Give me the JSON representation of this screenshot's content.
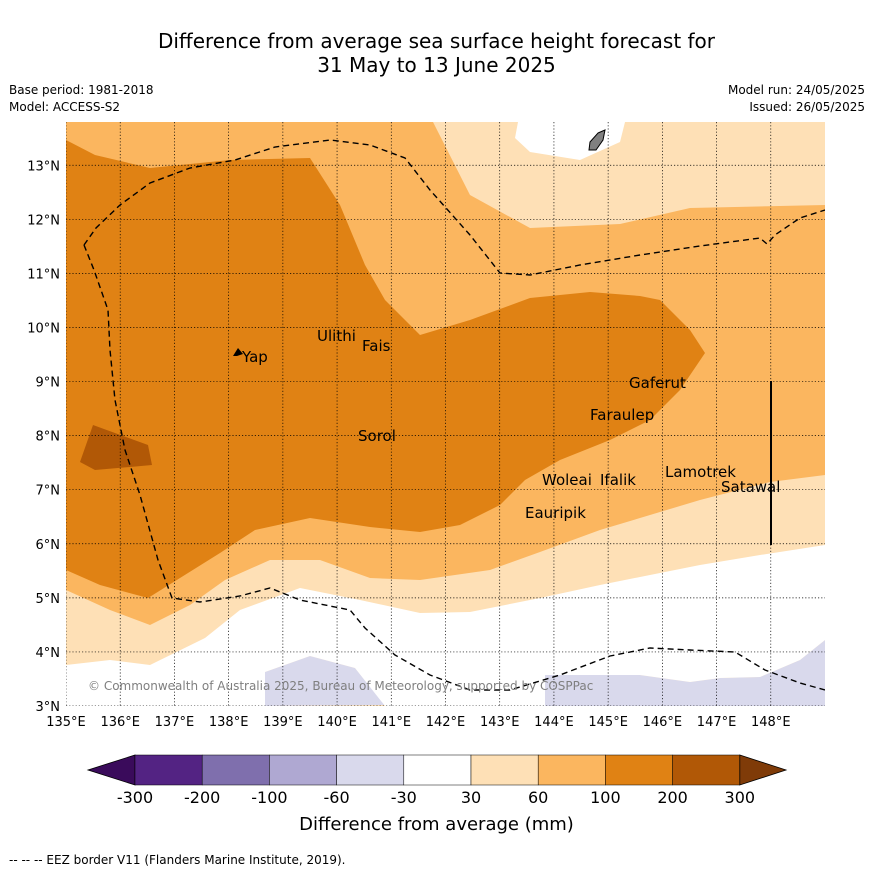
{
  "title": {
    "line1": "Difference from average sea surface height forecast for",
    "line2": "31 May to 13 June 2025"
  },
  "meta_left": {
    "base_period": "Base period: 1981-2018",
    "model": "Model: ACCESS-S2"
  },
  "meta_right": {
    "model_run": "Model run: 24/05/2025",
    "issued": "Issued: 26/05/2025"
  },
  "map": {
    "lon_range": [
      135,
      149
    ],
    "lat_range": [
      3,
      13.8
    ],
    "lon_ticks": [
      "135°E",
      "136°E",
      "137°E",
      "138°E",
      "139°E",
      "140°E",
      "141°E",
      "142°E",
      "143°E",
      "144°E",
      "145°E",
      "146°E",
      "147°E",
      "148°E"
    ],
    "lat_ticks": [
      "3°N",
      "4°N",
      "5°N",
      "6°N",
      "7°N",
      "8°N",
      "9°N",
      "10°N",
      "11°N",
      "12°N",
      "13°N"
    ],
    "places": [
      "Yap",
      "Ulithi",
      "Fais",
      "Gaferut",
      "Faraulep",
      "Sorol",
      "Lamotrek",
      "Woleai",
      "Ifalik",
      "Satawal",
      "Eauripik"
    ],
    "copyright": "© Commonwealth of Australia 2025, Bureau of Meteorology, supported by COSPPac"
  },
  "colorbar": {
    "colors": [
      "#3a0b5b",
      "#532383",
      "#7f6fad",
      "#afa8d2",
      "#d9d9ec",
      "#ffffff",
      "#fee0b6",
      "#fbb65f",
      "#e08214",
      "#b15806",
      "#7f3b08"
    ],
    "labels": [
      "-300",
      "-200",
      "-100",
      "-60",
      "-30",
      "30",
      "60",
      "100",
      "200",
      "300"
    ],
    "title": "Difference from average (mm)"
  },
  "footnote": "-- -- -- EEZ border V11 (Flanders Marine Institute, 2019)."
}
